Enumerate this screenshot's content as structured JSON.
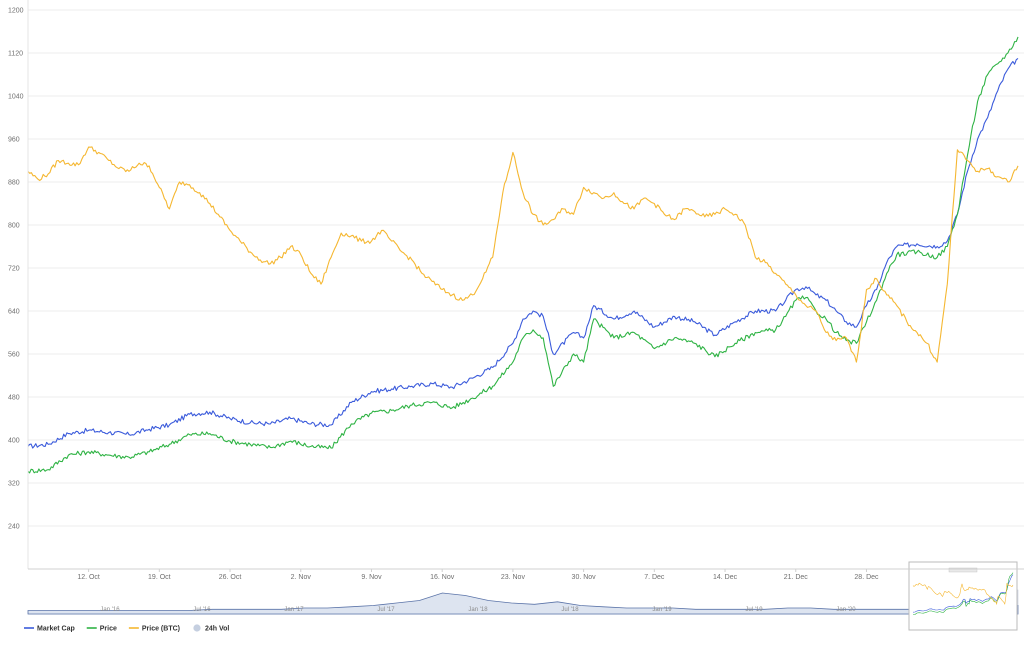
{
  "chart_data": {
    "type": "line",
    "title": "",
    "xlabel": "",
    "ylabel": "",
    "ylim": [
      160,
      1200
    ],
    "y_ticks": [
      240,
      320,
      400,
      480,
      560,
      640,
      720,
      800,
      880,
      960,
      1040,
      1120,
      1200
    ],
    "x_ticks": [
      "12. Oct",
      "19. Oct",
      "26. Oct",
      "2. Nov",
      "9. Nov",
      "16. Nov",
      "23. Nov",
      "30. Nov",
      "7. Dec",
      "14. Dec",
      "21. Dec",
      "28. Dec"
    ],
    "x_range_days": [
      0,
      98
    ],
    "x_tick_days": [
      6,
      13,
      20,
      27,
      34,
      41,
      48,
      55,
      62,
      69,
      76,
      83
    ],
    "grid": true,
    "legend_position": "bottom-left",
    "series": [
      {
        "name": "Market Cap",
        "color": "#3b5bdb",
        "x": [
          0,
          2,
          4,
          6,
          8,
          10,
          12,
          14,
          16,
          18,
          20,
          22,
          24,
          26,
          28,
          30,
          32,
          34,
          36,
          38,
          40,
          42,
          44,
          46,
          48,
          49,
          50,
          51,
          52,
          54,
          55,
          56,
          58,
          60,
          62,
          64,
          66,
          68,
          70,
          72,
          74,
          75,
          76,
          77,
          78,
          79,
          80,
          81,
          82,
          83,
          84,
          85,
          86,
          88,
          90,
          91,
          92,
          93,
          94,
          95,
          96,
          97,
          98
        ],
        "values": [
          388,
          392,
          412,
          418,
          414,
          410,
          420,
          428,
          448,
          452,
          440,
          432,
          430,
          440,
          430,
          428,
          470,
          490,
          495,
          500,
          505,
          498,
          515,
          535,
          580,
          625,
          640,
          630,
          560,
          600,
          590,
          650,
          625,
          640,
          610,
          630,
          620,
          595,
          620,
          640,
          640,
          660,
          680,
          685,
          670,
          660,
          640,
          620,
          610,
          650,
          680,
          730,
          760,
          765,
          760,
          770,
          820,
          900,
          960,
          1000,
          1050,
          1090,
          1110
        ]
      },
      {
        "name": "Price",
        "color": "#2fb344",
        "x": [
          0,
          2,
          4,
          6,
          8,
          10,
          12,
          14,
          16,
          18,
          20,
          22,
          24,
          26,
          28,
          30,
          32,
          34,
          36,
          38,
          40,
          42,
          44,
          46,
          48,
          49,
          50,
          51,
          52,
          54,
          55,
          56,
          58,
          60,
          62,
          64,
          66,
          68,
          70,
          72,
          74,
          75,
          76,
          77,
          78,
          79,
          80,
          81,
          82,
          83,
          84,
          85,
          86,
          88,
          90,
          91,
          92,
          93,
          94,
          95,
          96,
          97,
          98
        ],
        "values": [
          342,
          345,
          372,
          378,
          372,
          368,
          378,
          392,
          410,
          412,
          398,
          392,
          386,
          398,
          388,
          385,
          430,
          450,
          455,
          465,
          470,
          460,
          478,
          500,
          545,
          590,
          605,
          590,
          500,
          560,
          545,
          625,
          590,
          600,
          570,
          590,
          580,
          555,
          580,
          600,
          605,
          630,
          660,
          665,
          640,
          625,
          600,
          585,
          580,
          620,
          660,
          710,
          745,
          750,
          740,
          760,
          820,
          930,
          1030,
          1080,
          1100,
          1120,
          1150
        ]
      },
      {
        "name": "Price (BTC)",
        "color": "#f5b731",
        "x": [
          0,
          1,
          2,
          3,
          4,
          5,
          6,
          7,
          8,
          9,
          10,
          11,
          12,
          13,
          14,
          15,
          16,
          17,
          18,
          19,
          20,
          21,
          22,
          23,
          24,
          25,
          26,
          27,
          28,
          29,
          30,
          31,
          32,
          33,
          34,
          35,
          36,
          37,
          38,
          39,
          40,
          41,
          42,
          43,
          44,
          45,
          46,
          47,
          48,
          49,
          50,
          51,
          52,
          53,
          54,
          55,
          56,
          57,
          58,
          59,
          60,
          61,
          62,
          63,
          64,
          65,
          66,
          67,
          68,
          69,
          70,
          71,
          72,
          73,
          74,
          75,
          76,
          77,
          78,
          79,
          80,
          81,
          82,
          83,
          84,
          85,
          86,
          87,
          88,
          89,
          90,
          91,
          92,
          93,
          94,
          95,
          96,
          97,
          98
        ],
        "values": [
          900,
          885,
          895,
          920,
          915,
          912,
          945,
          935,
          920,
          905,
          900,
          915,
          910,
          870,
          830,
          880,
          875,
          860,
          840,
          815,
          790,
          770,
          750,
          735,
          728,
          740,
          760,
          745,
          710,
          690,
          740,
          785,
          780,
          770,
          770,
          790,
          770,
          750,
          735,
          710,
          695,
          680,
          670,
          660,
          670,
          700,
          740,
          860,
          935,
          860,
          820,
          800,
          810,
          830,
          820,
          870,
          860,
          850,
          860,
          840,
          830,
          850,
          840,
          820,
          810,
          830,
          825,
          815,
          820,
          830,
          820,
          800,
          740,
          730,
          710,
          690,
          670,
          650,
          640,
          600,
          585,
          590,
          545,
          680,
          700,
          670,
          650,
          620,
          600,
          580,
          545,
          690,
          940,
          920,
          900,
          905,
          890,
          880,
          910
        ]
      }
    ],
    "navigator": {
      "ticks": [
        "Jan '16",
        "Jul '16",
        "Jan '17",
        "Jul '17",
        "Jan '18",
        "Jul '18",
        "Jan '19",
        "Jul '19",
        "Jan '20"
      ],
      "values": [
        2,
        2,
        2,
        2,
        2,
        2,
        2,
        2,
        3,
        3,
        3,
        3,
        4,
        4,
        5,
        6,
        8,
        10,
        16,
        14,
        10,
        8,
        7,
        9,
        6,
        5,
        4,
        4,
        4,
        3,
        3,
        3,
        3,
        4,
        4,
        3,
        3,
        3,
        3,
        3,
        3,
        3,
        4,
        6
      ]
    },
    "legend": [
      {
        "label": "Market Cap",
        "color": "#3b5bdb",
        "shape": "line"
      },
      {
        "label": "Price",
        "color": "#2fb344",
        "shape": "line"
      },
      {
        "label": "Price (BTC)",
        "color": "#f5b731",
        "shape": "line"
      },
      {
        "label": "24h Vol",
        "color": "#c5cfe0",
        "shape": "circle"
      }
    ]
  }
}
